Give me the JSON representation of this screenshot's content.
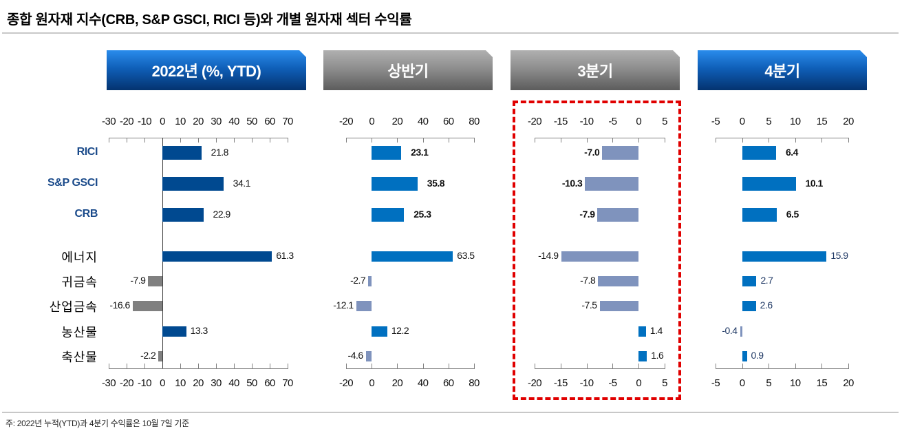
{
  "page": {
    "title": "종합 원자재 지수(CRB, S&P GSCI, RICI 등)와 개별 원자재 섹터 수익률",
    "footnote": "주: 2022년 누적(YTD)과 4분기 수익률은 10월 7일 기준"
  },
  "categories": {
    "indices": [
      "RICI",
      "S&P GSCI",
      "CRB"
    ],
    "sectors": [
      "에너지",
      "귀금속",
      "산업금속",
      "농산물",
      "축산물"
    ]
  },
  "colors": {
    "dark_blue": "#004990",
    "mid_blue": "#0070c0",
    "gray": "#808080",
    "slate": "#7f93bd",
    "highlight_red": "#e00000"
  },
  "panels": [
    {
      "header": "2022년 (%, YTD)",
      "style": "blue"
    },
    {
      "header": "상반기",
      "style": "gray"
    },
    {
      "header": "3분기",
      "style": "gray"
    },
    {
      "header": "4분기",
      "style": "blue"
    }
  ],
  "chart_data": [
    {
      "type": "bar",
      "orientation": "horizontal",
      "title": "2022년 (%, YTD)",
      "categories": [
        "RICI",
        "S&P GSCI",
        "CRB",
        "에너지",
        "귀금속",
        "산업금속",
        "농산물",
        "축산물"
      ],
      "values": [
        21.8,
        34.1,
        22.9,
        61.3,
        -7.9,
        -16.6,
        13.3,
        -2.2
      ],
      "labels": [
        "21.8",
        "34.1",
        "22.9",
        "61.3",
        "-7.9",
        "-16.6",
        "13.3",
        "-2.2"
      ],
      "xlim": [
        -30,
        70
      ],
      "xticks": [
        "-30",
        "-20",
        "-10",
        "0",
        "10",
        "20",
        "30",
        "40",
        "50",
        "60",
        "70"
      ],
      "grid": false
    },
    {
      "type": "bar",
      "orientation": "horizontal",
      "title": "상반기",
      "categories": [
        "RICI",
        "S&P GSCI",
        "CRB",
        "에너지",
        "귀금속",
        "산업금속",
        "농산물",
        "축산물"
      ],
      "values": [
        23.1,
        35.8,
        25.3,
        63.5,
        -2.7,
        -12.1,
        12.2,
        -4.6
      ],
      "labels": [
        "23.1",
        "35.8",
        "25.3",
        "63.5",
        "-2.7",
        "-12.1",
        "12.2",
        "-4.6"
      ],
      "xlim": [
        -20,
        80
      ],
      "xticks": [
        "-20",
        "0",
        "20",
        "40",
        "60",
        "80"
      ],
      "grid": false
    },
    {
      "type": "bar",
      "orientation": "horizontal",
      "title": "3분기",
      "categories": [
        "RICI",
        "S&P GSCI",
        "CRB",
        "에너지",
        "귀금속",
        "산업금속",
        "농산물",
        "축산물"
      ],
      "values": [
        -7.0,
        -10.3,
        -7.9,
        -14.9,
        -7.8,
        -7.5,
        1.4,
        1.6
      ],
      "labels": [
        "-7.0",
        "-10.3",
        "-7.9",
        "-14.9",
        "-7.8",
        "-7.5",
        "1.4",
        "1.6"
      ],
      "xlim": [
        -20,
        5
      ],
      "xticks": [
        "-20",
        "-15",
        "-10",
        "-5",
        "0",
        "5"
      ],
      "grid": false,
      "annotation": "red dashed highlight box"
    },
    {
      "type": "bar",
      "orientation": "horizontal",
      "title": "4분기",
      "categories": [
        "RICI",
        "S&P GSCI",
        "CRB",
        "에너지",
        "귀금속",
        "산업금속",
        "농산물",
        "축산물"
      ],
      "values": [
        6.4,
        10.1,
        6.5,
        15.9,
        2.7,
        2.6,
        -0.4,
        0.9
      ],
      "labels": [
        "6.4",
        "10.1",
        "6.5",
        "15.9",
        "2.7",
        "2.6",
        "-0.4",
        "0.9"
      ],
      "xlim": [
        -5,
        20
      ],
      "xticks": [
        "-5",
        "0",
        "5",
        "10",
        "15",
        "20"
      ],
      "grid": false
    }
  ]
}
